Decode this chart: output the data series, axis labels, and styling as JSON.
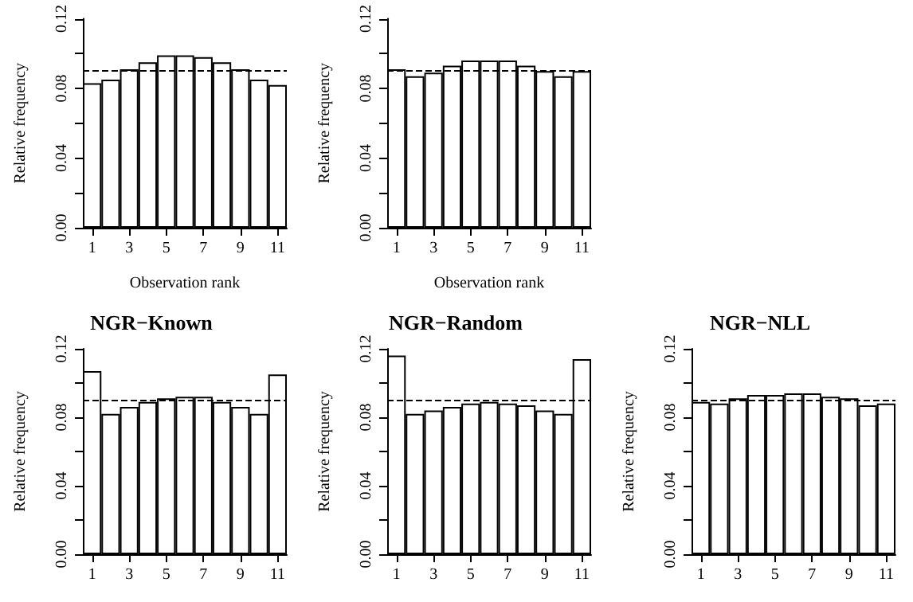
{
  "chart_data": [
    {
      "type": "bar",
      "xlabel": "Observation rank",
      "ylabel": "Relative frequency",
      "categories": [
        "1",
        null,
        "3",
        null,
        "5",
        null,
        "7",
        null,
        "9",
        null,
        "11"
      ],
      "series": [
        {
          "color": "#ffffff",
          "values": [
            0.083,
            0.085,
            0.091,
            0.095,
            0.099,
            0.099,
            0.098,
            0.095,
            0.091,
            0.085,
            0.082
          ]
        }
      ],
      "ylim": [
        0,
        0.12
      ],
      "yticks": [
        {
          "value": 0,
          "label": "0.00"
        },
        {
          "value": 0.02,
          "label": null
        },
        {
          "value": 0.04,
          "label": "0.04"
        },
        {
          "value": 0.06,
          "label": null
        },
        {
          "value": 0.08,
          "label": "0.08"
        },
        {
          "value": 0.1,
          "label": null
        },
        {
          "value": 0.12,
          "label": "0.12"
        }
      ],
      "ref_lines": [
        {
          "axis": "y",
          "value": 0.0909,
          "line_style": "dashed",
          "color": "#000000"
        }
      ],
      "grid": false
    },
    {
      "type": "bar",
      "xlabel": "Observation rank",
      "ylabel": "Relative frequency",
      "categories": [
        "1",
        null,
        "3",
        null,
        "5",
        null,
        "7",
        null,
        "9",
        null,
        "11"
      ],
      "series": [
        {
          "color": "#ffffff",
          "values": [
            0.091,
            0.087,
            0.089,
            0.093,
            0.096,
            0.096,
            0.096,
            0.093,
            0.09,
            0.087,
            0.09
          ]
        }
      ],
      "ylim": [
        0,
        0.12
      ],
      "yticks": [
        {
          "value": 0,
          "label": "0.00"
        },
        {
          "value": 0.02,
          "label": null
        },
        {
          "value": 0.04,
          "label": "0.04"
        },
        {
          "value": 0.06,
          "label": null
        },
        {
          "value": 0.08,
          "label": "0.08"
        },
        {
          "value": 0.1,
          "label": null
        },
        {
          "value": 0.12,
          "label": "0.12"
        }
      ],
      "ref_lines": [
        {
          "axis": "y",
          "value": 0.0909,
          "line_style": "dashed",
          "color": "#000000"
        }
      ],
      "grid": false
    },
    {
      "type": "bar",
      "title": "NGR−Known",
      "ylabel": "Relative frequency",
      "categories": [
        "1",
        null,
        "3",
        null,
        "5",
        null,
        "7",
        null,
        "9",
        null,
        "11"
      ],
      "series": [
        {
          "color": "#ffffff",
          "values": [
            0.107,
            0.082,
            0.086,
            0.089,
            0.091,
            0.092,
            0.092,
            0.089,
            0.086,
            0.082,
            0.105
          ]
        }
      ],
      "ylim": [
        0,
        0.12
      ],
      "yticks": [
        {
          "value": 0,
          "label": "0.00"
        },
        {
          "value": 0.02,
          "label": null
        },
        {
          "value": 0.04,
          "label": "0.04"
        },
        {
          "value": 0.06,
          "label": null
        },
        {
          "value": 0.08,
          "label": "0.08"
        },
        {
          "value": 0.1,
          "label": null
        },
        {
          "value": 0.12,
          "label": "0.12"
        }
      ],
      "ref_lines": [
        {
          "axis": "y",
          "value": 0.0909,
          "line_style": "dashed",
          "color": "#000000"
        }
      ],
      "grid": false
    },
    {
      "type": "bar",
      "title": "NGR−Random",
      "ylabel": "Relative frequency",
      "categories": [
        "1",
        null,
        "3",
        null,
        "5",
        null,
        "7",
        null,
        "9",
        null,
        "11"
      ],
      "series": [
        {
          "color": "#ffffff",
          "values": [
            0.116,
            0.082,
            0.084,
            0.086,
            0.088,
            0.089,
            0.088,
            0.087,
            0.084,
            0.082,
            0.114
          ]
        }
      ],
      "ylim": [
        0,
        0.12
      ],
      "yticks": [
        {
          "value": 0,
          "label": "0.00"
        },
        {
          "value": 0.02,
          "label": null
        },
        {
          "value": 0.04,
          "label": "0.04"
        },
        {
          "value": 0.06,
          "label": null
        },
        {
          "value": 0.08,
          "label": "0.08"
        },
        {
          "value": 0.1,
          "label": null
        },
        {
          "value": 0.12,
          "label": "0.12"
        }
      ],
      "ref_lines": [
        {
          "axis": "y",
          "value": 0.0909,
          "line_style": "dashed",
          "color": "#000000"
        }
      ],
      "grid": false
    },
    {
      "type": "bar",
      "title": "NGR−NLL",
      "ylabel": "Relative frequency",
      "categories": [
        "1",
        null,
        "3",
        null,
        "5",
        null,
        "7",
        null,
        "9",
        null,
        "11"
      ],
      "series": [
        {
          "color": "#ffffff",
          "values": [
            0.089,
            0.088,
            0.091,
            0.093,
            0.093,
            0.094,
            0.094,
            0.092,
            0.091,
            0.087,
            0.088
          ]
        }
      ],
      "ylim": [
        0,
        0.12
      ],
      "yticks": [
        {
          "value": 0,
          "label": "0.00"
        },
        {
          "value": 0.02,
          "label": null
        },
        {
          "value": 0.04,
          "label": "0.04"
        },
        {
          "value": 0.06,
          "label": null
        },
        {
          "value": 0.08,
          "label": "0.08"
        },
        {
          "value": 0.1,
          "label": null
        },
        {
          "value": 0.12,
          "label": "0.12"
        }
      ],
      "ref_lines": [
        {
          "axis": "y",
          "value": 0.0909,
          "line_style": "dashed",
          "color": "#000000"
        }
      ],
      "grid": false
    }
  ]
}
